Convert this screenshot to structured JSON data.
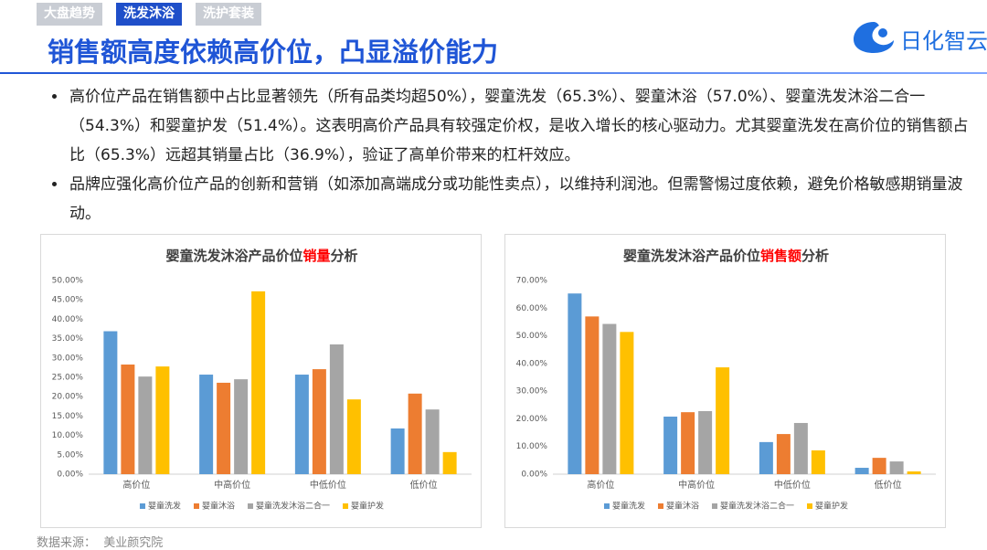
{
  "tabs": [
    "大盘趋势",
    "洗发沐浴",
    "洗护套装"
  ],
  "header": {
    "title": "销售额高度依赖高价位，凸显溢价能力",
    "logo": "日化智云"
  },
  "bullets": [
    "高价位产品在销售额中占比显著领先（所有品类均超50%），婴童洗发（65.3%）、婴童沐浴（57.0%）、婴童洗发沐浴二合一（54.3%）和婴童护发（51.4%）。这表明高价产品具有较强定价权，是收入增长的核心驱动力。尤其婴童洗发在高价位的销售额占比（65.3%）远超其销量占比（36.9%），验证了高单价带来的杠杆效应。",
    "品牌应强化高价位产品的创新和营销（如添加高端成分或功能性卖点），以维持利润池。但需警惕过度依赖，避免价格敏感期销量波动。"
  ],
  "source": "数据来源：  美业颜究院",
  "chart_data": [
    {
      "type": "bar",
      "title": [
        "婴童洗发沐浴产品价位",
        "销量",
        "分析"
      ],
      "title_colors": [
        "#404040",
        "#ff0000",
        "#404040"
      ],
      "categories": [
        "高价位",
        "中高价位",
        "中低价位",
        "低价位"
      ],
      "series": [
        {
          "name": "婴童洗发",
          "color": "#5b9bd5",
          "values": [
            36.9,
            25.7,
            25.7,
            11.8
          ]
        },
        {
          "name": "婴童沐浴",
          "color": "#ed7d31",
          "values": [
            28.3,
            23.6,
            27.1,
            20.8
          ]
        },
        {
          "name": "婴童洗发沐浴二合一",
          "color": "#a5a5a5",
          "values": [
            25.2,
            24.5,
            33.5,
            16.7
          ]
        },
        {
          "name": "婴童护发",
          "color": "#ffc000",
          "values": [
            27.8,
            47.2,
            19.3,
            5.7
          ]
        }
      ],
      "ylim": [
        0,
        50
      ],
      "yticks": [
        {
          "value": 0,
          "label": "0.00%"
        },
        {
          "value": 5,
          "label": "5.00%"
        },
        {
          "value": 10,
          "label": "10.00%"
        },
        {
          "value": 15,
          "label": "15.00%"
        },
        {
          "value": 20,
          "label": "20.00%"
        },
        {
          "value": 25,
          "label": "25.00%"
        },
        {
          "value": 30,
          "label": "30.00%"
        },
        {
          "value": 35,
          "label": "35.00%"
        },
        {
          "value": 40,
          "label": "40.00%"
        },
        {
          "value": 45,
          "label": "45.00%"
        },
        {
          "value": 50,
          "label": "50.00%"
        }
      ],
      "grid": false,
      "legend": "bottom"
    },
    {
      "type": "bar",
      "title": [
        "婴童洗发沐浴产品价位",
        "销售额",
        "分析"
      ],
      "title_colors": [
        "#404040",
        "#ff0000",
        "#404040"
      ],
      "categories": [
        "高价位",
        "中高价位",
        "中低价位",
        "低价位"
      ],
      "series": [
        {
          "name": "婴童洗发",
          "color": "#5b9bd5",
          "values": [
            65.3,
            20.8,
            11.6,
            2.3
          ]
        },
        {
          "name": "婴童沐浴",
          "color": "#ed7d31",
          "values": [
            57.0,
            22.4,
            14.5,
            5.9
          ]
        },
        {
          "name": "婴童洗发沐浴二合一",
          "color": "#a5a5a5",
          "values": [
            54.3,
            22.8,
            18.5,
            4.6
          ]
        },
        {
          "name": "婴童护发",
          "color": "#ffc000",
          "values": [
            51.4,
            38.6,
            8.6,
            1.0
          ]
        }
      ],
      "ylim": [
        0,
        70
      ],
      "yticks": [
        {
          "value": 0,
          "label": "0.00%"
        },
        {
          "value": 10,
          "label": "10.00%"
        },
        {
          "value": 20,
          "label": "20.00%"
        },
        {
          "value": 30,
          "label": "30.00%"
        },
        {
          "value": 40,
          "label": "40.00%"
        },
        {
          "value": 50,
          "label": "50.00%"
        },
        {
          "value": 60,
          "label": "60.00%"
        },
        {
          "value": 70,
          "label": "70.00%"
        }
      ],
      "grid": false,
      "legend": "bottom"
    }
  ]
}
